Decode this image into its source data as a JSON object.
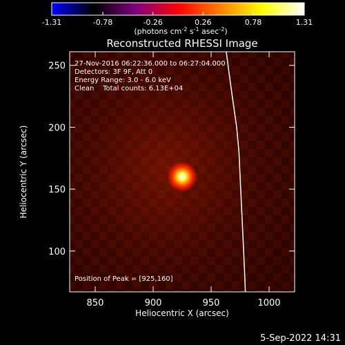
{
  "chart_data": {
    "type": "heatmap",
    "title": "Reconstructed RHESSI Image",
    "xlabel": "Heliocentric X (arcsec)",
    "ylabel": "Heliocentric Y (arcsec)",
    "xlim": [
      828,
      1022
    ],
    "ylim": [
      67,
      261
    ],
    "x_ticks": [
      850,
      900,
      950,
      1000
    ],
    "y_ticks": [
      100,
      150,
      200,
      250
    ],
    "colorbar": {
      "range": [
        -1.31,
        1.31
      ],
      "ticks": [
        -1.31,
        -0.78,
        -0.26,
        0.26,
        0.78,
        1.31
      ],
      "tick_labels": [
        "-1.31",
        "-0.78",
        "-0.26",
        "0.26",
        "0.78",
        "1.31"
      ],
      "label_main": "(photons cm",
      "label_exp1": "-2",
      "label_mid1": " s",
      "label_exp2": "-1",
      "label_mid2": " asec",
      "label_exp3": "-2",
      "label_end": ")",
      "colors": [
        "#0000ff",
        "#000000",
        "#7f0080",
        "#ff0000",
        "#ff8000",
        "#ffff00",
        "#ffffff"
      ]
    },
    "annotations": [
      "27-Nov-2016 06:22:36.000 to 06:27:04.000",
      "Detectors: 3F 9F, Att 0",
      "Energy Range: 3.0 - 6.0 keV",
      "Clean    Total counts: 6.13E+04"
    ],
    "peak_label": "Position of Peak = [925,160]",
    "peak": {
      "x": 925,
      "y": 160,
      "value": 1.31
    },
    "limb_curve": [
      [
        963,
        261
      ],
      [
        966,
        240
      ],
      [
        969,
        220
      ],
      [
        972,
        200
      ],
      [
        974,
        180
      ],
      [
        975,
        160
      ],
      [
        976,
        140
      ],
      [
        977,
        120
      ],
      [
        978,
        100
      ],
      [
        979,
        80
      ],
      [
        979.5,
        67
      ]
    ],
    "timestamp": "5-Sep-2022 14:31"
  }
}
